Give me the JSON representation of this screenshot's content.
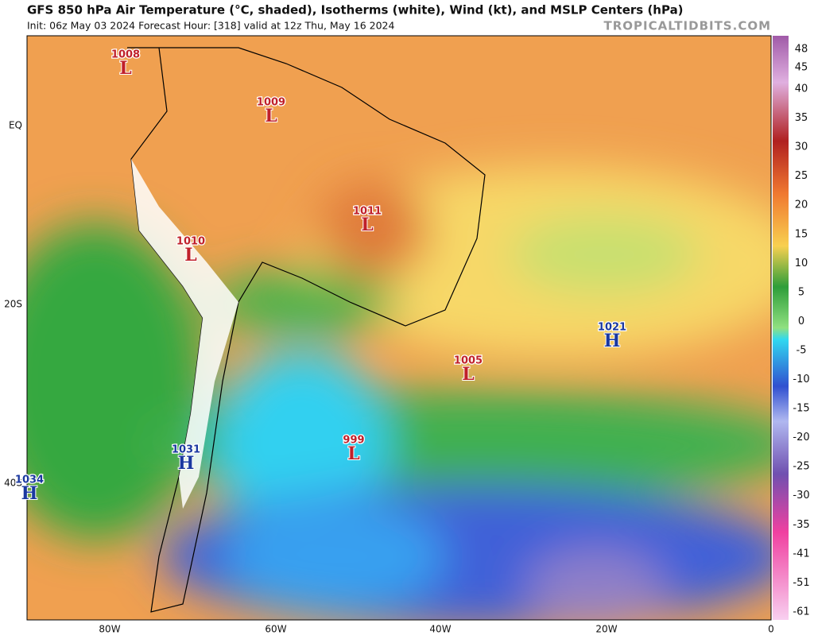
{
  "header": {
    "title": "GFS 850 hPa Air Temperature (°C, shaded), Isotherms (white), Wind (kt), and MSLP Centers (hPa)",
    "subtitle": "Init: 06z May 03 2024   Forecast Hour: [318]   valid at 12z Thu, May 16 2024",
    "credit": "TROPICALTIDBITS.COM"
  },
  "map": {
    "lon_labels": [
      "80W",
      "60W",
      "40W",
      "20W",
      "0"
    ],
    "lat_labels": [
      "EQ",
      "20S",
      "40S"
    ]
  },
  "centers": [
    {
      "letter": "L",
      "value": "1008"
    },
    {
      "letter": "L",
      "value": "1009"
    },
    {
      "letter": "L",
      "value": "1011"
    },
    {
      "letter": "L",
      "value": "1010"
    },
    {
      "letter": "L",
      "value": "1005"
    },
    {
      "letter": "L",
      "value": "999"
    },
    {
      "letter": "H",
      "value": "1021"
    },
    {
      "letter": "H",
      "value": "1031"
    },
    {
      "letter": "H",
      "value": "1034"
    }
  ],
  "colorbar": {
    "ticks": [
      "48",
      "45",
      "40",
      "35",
      "30",
      "25",
      "20",
      "15",
      "10",
      "5",
      "0",
      "-5",
      "-10",
      "-15",
      "-20",
      "-25",
      "-30",
      "-35",
      "-41",
      "-51",
      "-61"
    ]
  }
}
